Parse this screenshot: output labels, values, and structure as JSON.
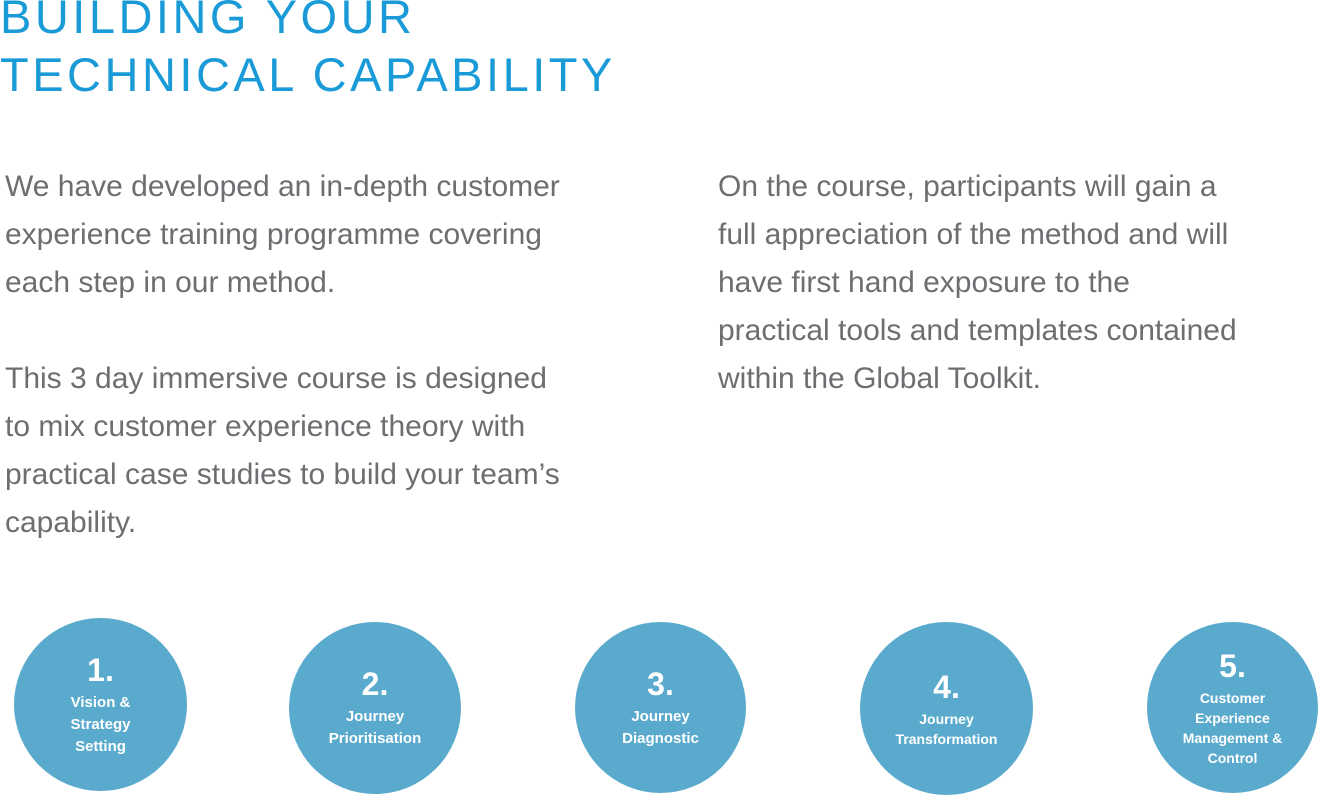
{
  "heading": {
    "line1": "BUILDING YOUR",
    "line2": "TECHNICAL CAPABILITY"
  },
  "left_column": {
    "paragraph1": [
      "We have developed an in-depth customer",
      "experience training programme covering",
      "each step in our method."
    ],
    "paragraph2": [
      "This 3 day immersive course is designed",
      "to mix customer experience theory with",
      "practical case studies to build your team’s",
      "capability."
    ]
  },
  "right_column": {
    "paragraph1": [
      "On the course, participants will gain a",
      "full appreciation of the method and will",
      "have first hand exposure to the",
      "practical tools and templates contained",
      "within the Global Toolkit."
    ]
  },
  "steps": [
    {
      "number": "1.",
      "label": [
        "Vision &",
        "Strategy",
        "Setting"
      ]
    },
    {
      "number": "2.",
      "label": [
        "Journey",
        "Prioritisation"
      ]
    },
    {
      "number": "3.",
      "label": [
        "Journey",
        "Diagnostic"
      ]
    },
    {
      "number": "4.",
      "label": [
        "Journey",
        "Transformation"
      ]
    },
    {
      "number": "5.",
      "label": [
        "Customer",
        "Experience",
        "Management &",
        "Control"
      ]
    }
  ],
  "colors": {
    "heading": "#1a9bd7",
    "body_text": "#6d6e71",
    "circle_fill": "#5aaacd"
  }
}
